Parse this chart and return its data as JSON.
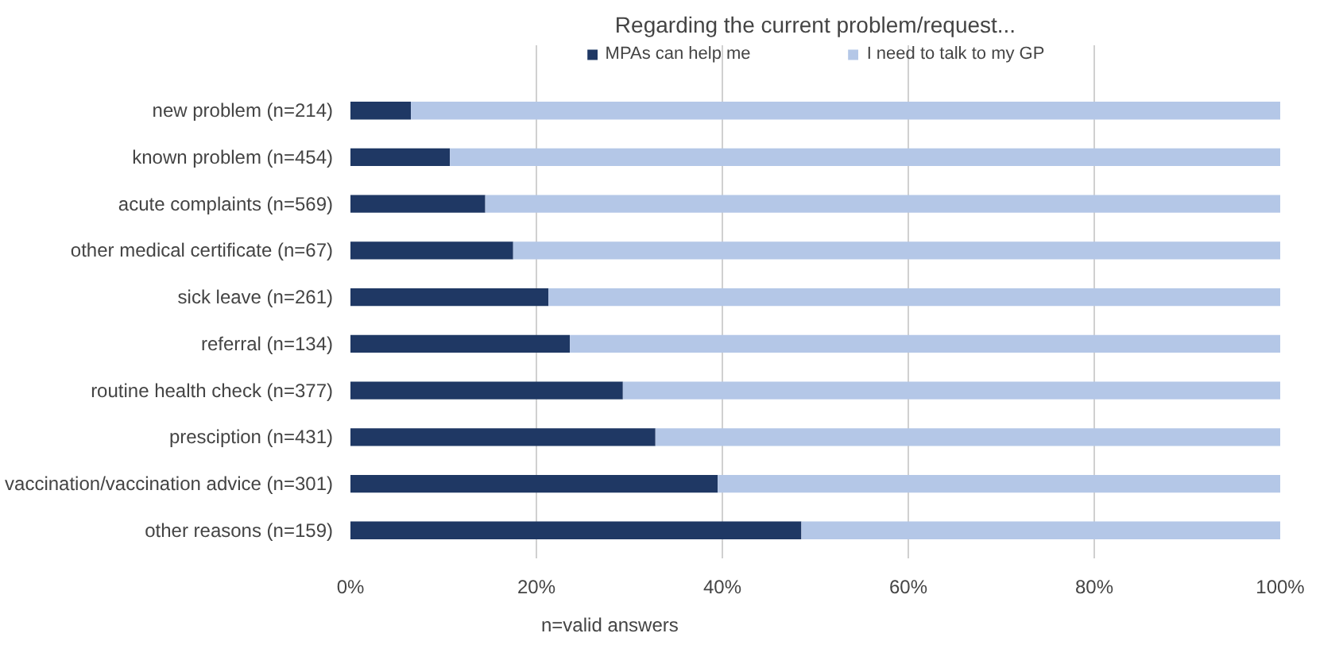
{
  "chart_data": {
    "type": "bar",
    "orientation": "horizontal",
    "stacked": true,
    "title": "Regarding the current problem/request...",
    "categories": [
      "new problem (n=214)",
      "known problem (n=454)",
      "acute complaints (n=569)",
      "other medical certificate (n=67)",
      "sick leave (n=261)",
      "referral (n=134)",
      "routine health check (n=377)",
      "presciption (n=431)",
      "vaccination/vaccination advice (n=301)",
      "other reasons (n=159)"
    ],
    "series": [
      {
        "name": "MPAs can help me",
        "color": "#1f3864",
        "values": [
          6.5,
          10.7,
          14.5,
          17.5,
          21.3,
          23.6,
          29.3,
          32.8,
          39.5,
          48.5
        ]
      },
      {
        "name": "I need to talk to my GP",
        "color": "#b4c7e7",
        "values": [
          93.5,
          89.3,
          85.5,
          82.5,
          78.7,
          76.4,
          70.7,
          67.2,
          60.5,
          51.5
        ]
      }
    ],
    "xlim": [
      0,
      100
    ],
    "xticks": [
      {
        "value": 0,
        "label": "0%"
      },
      {
        "value": 20,
        "label": "20%"
      },
      {
        "value": 40,
        "label": "40%"
      },
      {
        "value": 60,
        "label": "60%"
      },
      {
        "value": 80,
        "label": "80%"
      },
      {
        "value": 100,
        "label": "100%"
      }
    ],
    "grid": "x",
    "legend": "top",
    "annotations": [
      "n=valid answers"
    ]
  }
}
